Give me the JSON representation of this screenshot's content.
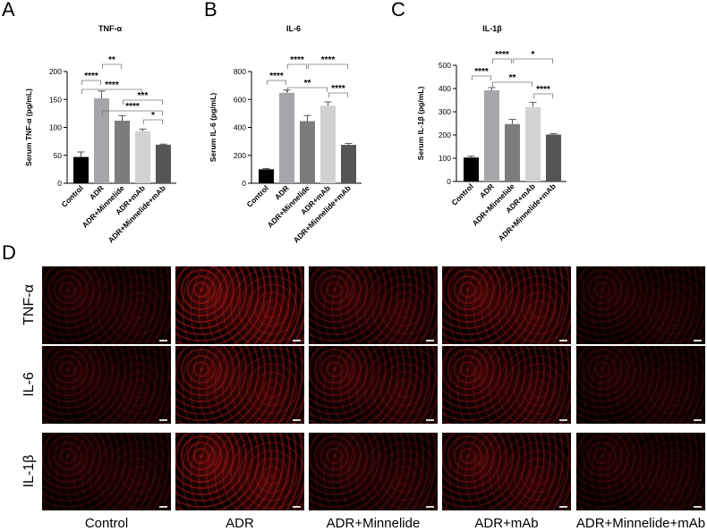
{
  "panels": {
    "a": "A",
    "b": "B",
    "c": "C",
    "d": "D"
  },
  "chart_data": [
    {
      "type": "bar",
      "title": "TNF-α",
      "ylabel": "Serum TNF-α (pg/mL)",
      "ylim": [
        0,
        200
      ],
      "yticks": [
        "0",
        "50",
        "100",
        "150",
        "200"
      ],
      "categories": [
        "Control",
        "ADR",
        "ADR+Minnelide",
        "ADR+mAb",
        "ADR+Minnelide+mAb"
      ],
      "values": [
        47,
        152,
        112,
        93,
        69
      ],
      "errors": [
        9,
        13,
        9,
        4,
        1
      ],
      "colors": [
        "#000000",
        "#a6a6aa",
        "#7c7c7c",
        "#d2d2d2",
        "#555555"
      ],
      "significance": [
        {
          "from": 0,
          "to": 1,
          "label": "****"
        },
        {
          "from": 1,
          "to": 2,
          "label": "**"
        },
        {
          "from": 0,
          "to": 3,
          "label": "****"
        },
        {
          "from": 1,
          "to": 4,
          "label": "****"
        },
        {
          "from": 2,
          "to": 4,
          "label": "***"
        },
        {
          "from": 3,
          "to": 4,
          "label": "*"
        }
      ]
    },
    {
      "type": "bar",
      "title": "IL-6",
      "ylabel": "Serum IL-6 (pg/mL)",
      "ylim": [
        0,
        800
      ],
      "yticks": [
        "0",
        "200",
        "400",
        "600",
        "800"
      ],
      "categories": [
        "Control",
        "ADR",
        "ADR+Minnelide",
        "ADR+mAb",
        "ADR+Minnelide+mAb"
      ],
      "values": [
        100,
        648,
        445,
        555,
        275
      ],
      "errors": [
        6,
        20,
        40,
        28,
        10
      ],
      "colors": [
        "#000000",
        "#a6a6aa",
        "#7c7c7c",
        "#d2d2d2",
        "#555555"
      ],
      "significance": [
        {
          "from": 0,
          "to": 1,
          "label": "****"
        },
        {
          "from": 1,
          "to": 2,
          "label": "****"
        },
        {
          "from": 2,
          "to": 4,
          "label": "****"
        },
        {
          "from": 1,
          "to": 3,
          "label": "**"
        },
        {
          "from": 3,
          "to": 4,
          "label": "****"
        }
      ]
    },
    {
      "type": "bar",
      "title": "IL-1β",
      "ylabel": "Serum IL-1β (pg/mL)",
      "ylim": [
        0,
        500
      ],
      "yticks": [
        "0",
        "100",
        "200",
        "300",
        "400",
        "500"
      ],
      "categories": [
        "Control",
        "ADR",
        "ADR+Minnelide",
        "ADR+mAb",
        "ADR+Minnelide+mAb"
      ],
      "values": [
        103,
        392,
        247,
        320,
        202
      ],
      "errors": [
        6,
        12,
        20,
        20,
        4
      ],
      "colors": [
        "#000000",
        "#a6a6aa",
        "#7c7c7c",
        "#d2d2d2",
        "#555555"
      ],
      "significance": [
        {
          "from": 0,
          "to": 1,
          "label": "****"
        },
        {
          "from": 1,
          "to": 2,
          "label": "****"
        },
        {
          "from": 2,
          "to": 4,
          "label": "*"
        },
        {
          "from": 1,
          "to": 3,
          "label": "**"
        },
        {
          "from": 3,
          "to": 4,
          "label": "****"
        }
      ]
    }
  ],
  "micrographs": {
    "rows": [
      "TNF-α",
      "IL-6",
      "IL-1β"
    ],
    "columns": [
      "Control",
      "ADR",
      "ADR+Minnelide",
      "ADR+mAb",
      "ADR+Minnelide+mAb"
    ],
    "intensity": [
      [
        0.35,
        0.95,
        0.55,
        0.7,
        0.3
      ],
      [
        0.35,
        0.75,
        0.55,
        0.6,
        0.3
      ],
      [
        0.35,
        0.9,
        0.45,
        0.6,
        0.3
      ]
    ]
  }
}
